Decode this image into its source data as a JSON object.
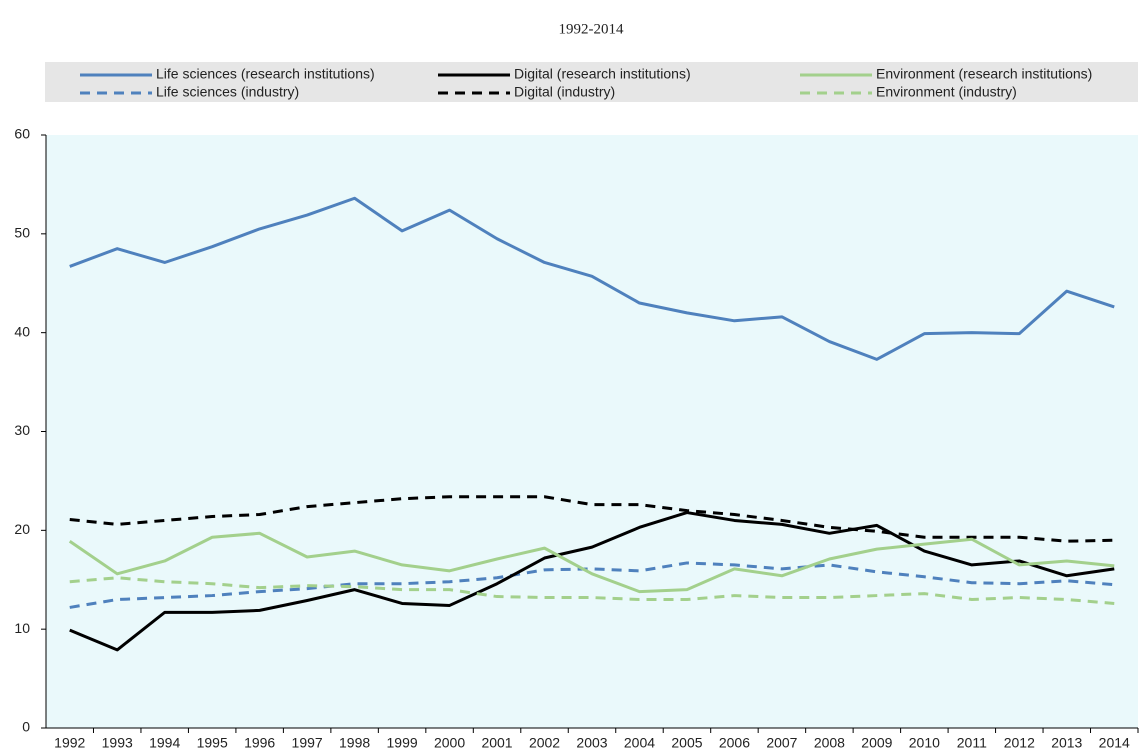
{
  "chart_data": {
    "type": "line",
    "subtitle": "1992-2014",
    "categories": [
      "1992",
      "1993",
      "1994",
      "1995",
      "1996",
      "1997",
      "1998",
      "1999",
      "2000",
      "2001",
      "2002",
      "2003",
      "2004",
      "2005",
      "2006",
      "2007",
      "2008",
      "2009",
      "2010",
      "2011",
      "2012",
      "2013",
      "2014"
    ],
    "ylim": [
      0,
      60
    ],
    "yticks": [
      0,
      10,
      20,
      30,
      40,
      50,
      60
    ],
    "series": [
      {
        "name": "Life sciences (research institutions)",
        "color": "#4f81bd",
        "dashed": false,
        "values": [
          46.7,
          48.5,
          47.1,
          48.7,
          50.5,
          51.9,
          53.6,
          50.3,
          52.4,
          49.5,
          47.1,
          45.7,
          43.0,
          42.0,
          41.2,
          41.6,
          39.1,
          37.3,
          39.9,
          40.0,
          39.9,
          44.2,
          42.6
        ]
      },
      {
        "name": "Life sciences (industry)",
        "color": "#4f81bd",
        "dashed": true,
        "values": [
          12.2,
          13.0,
          13.2,
          13.4,
          13.8,
          14.1,
          14.6,
          14.6,
          14.8,
          15.2,
          16.0,
          16.1,
          15.9,
          16.7,
          16.5,
          16.1,
          16.5,
          15.8,
          15.3,
          14.7,
          14.6,
          14.9,
          14.5
        ]
      },
      {
        "name": "Digital (research institutions)",
        "color": "#000000",
        "dashed": false,
        "values": [
          9.9,
          7.9,
          11.7,
          11.7,
          11.9,
          12.9,
          14.0,
          12.6,
          12.4,
          14.6,
          17.2,
          18.3,
          20.3,
          21.8,
          21.0,
          20.6,
          19.7,
          20.5,
          17.9,
          16.5,
          16.9,
          15.4,
          16.1
        ]
      },
      {
        "name": "Digital (industry)",
        "color": "#000000",
        "dashed": true,
        "values": [
          21.1,
          20.6,
          21.0,
          21.4,
          21.6,
          22.4,
          22.8,
          23.2,
          23.4,
          23.4,
          23.4,
          22.6,
          22.6,
          22.0,
          21.6,
          21.0,
          20.3,
          19.9,
          19.3,
          19.3,
          19.3,
          18.9,
          19.0
        ]
      },
      {
        "name": "Environment (research institutions)",
        "color": "#a3d08c",
        "dashed": false,
        "values": [
          18.9,
          15.6,
          16.9,
          19.3,
          19.7,
          17.3,
          17.9,
          16.5,
          15.9,
          17.1,
          18.2,
          15.6,
          13.8,
          14.0,
          16.1,
          15.4,
          17.1,
          18.1,
          18.6,
          19.1,
          16.5,
          16.9,
          16.4
        ]
      },
      {
        "name": "Environment (industry)",
        "color": "#a3d08c",
        "dashed": true,
        "values": [
          14.8,
          15.2,
          14.8,
          14.6,
          14.2,
          14.4,
          14.3,
          14.0,
          14.0,
          13.3,
          13.2,
          13.2,
          13.0,
          13.0,
          13.4,
          13.2,
          13.2,
          13.4,
          13.6,
          13.0,
          13.2,
          13.0,
          12.6
        ]
      }
    ]
  }
}
